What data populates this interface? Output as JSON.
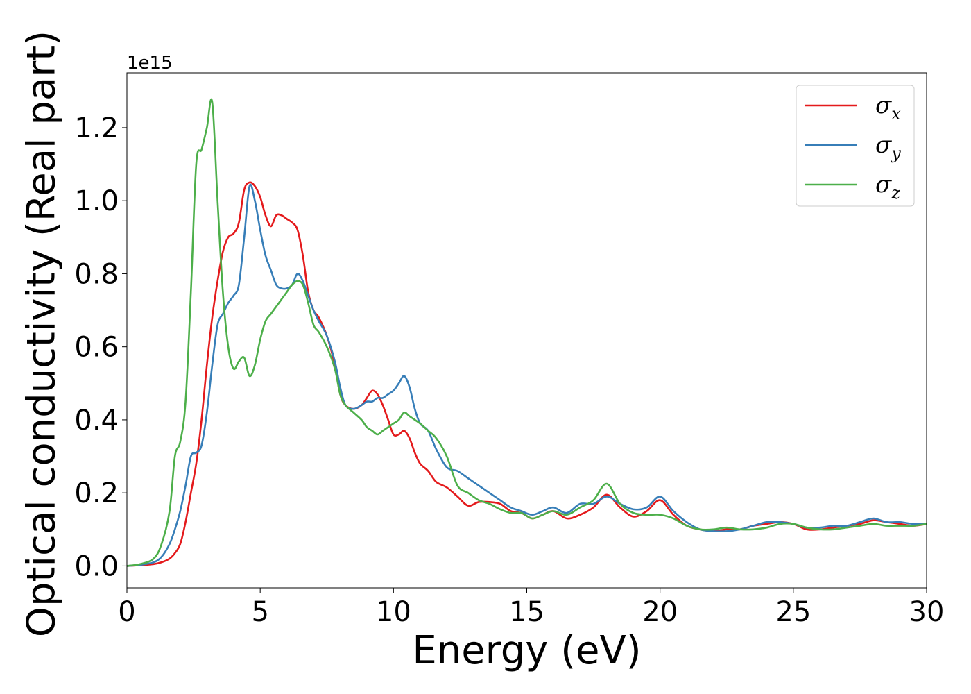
{
  "chart_data": {
    "type": "line",
    "xlabel": "Energy (eV)",
    "ylabel": "Optical conductivity (Real part)",
    "y_offset_label": "1e15",
    "xlim": [
      0,
      30
    ],
    "ylim": [
      -0.06,
      1.35
    ],
    "xticks": [
      0,
      5,
      10,
      15,
      20,
      25,
      30
    ],
    "yticks": [
      0.0,
      0.2,
      0.4,
      0.6,
      0.8,
      1.0,
      1.2
    ],
    "xtick_labels": [
      "0",
      "5",
      "10",
      "15",
      "20",
      "25",
      "30"
    ],
    "ytick_labels": [
      "0.0",
      "0.2",
      "0.4",
      "0.6",
      "0.8",
      "1.0",
      "1.2"
    ],
    "grid": false,
    "legend_position": "upper right",
    "series": [
      {
        "name": "σ",
        "subscript": "x",
        "color": "#e41a1c",
        "x": [
          0,
          0.5,
          1.0,
          1.3,
          1.6,
          1.8,
          2.0,
          2.2,
          2.4,
          2.6,
          2.8,
          3.0,
          3.2,
          3.4,
          3.6,
          3.8,
          4.0,
          4.2,
          4.4,
          4.6,
          4.8,
          5.0,
          5.2,
          5.4,
          5.6,
          5.8,
          6.0,
          6.2,
          6.4,
          6.6,
          6.8,
          7.0,
          7.2,
          7.5,
          7.8,
          8.0,
          8.2,
          8.5,
          8.8,
          9.0,
          9.2,
          9.4,
          9.6,
          9.8,
          10.0,
          10.2,
          10.4,
          10.6,
          10.8,
          11.0,
          11.3,
          11.6,
          12.0,
          12.4,
          12.8,
          13.2,
          13.6,
          14.0,
          14.4,
          14.8,
          15.2,
          15.6,
          16.0,
          16.5,
          17.0,
          17.5,
          18.0,
          18.5,
          19.0,
          19.5,
          20.0,
          20.5,
          21.0,
          21.5,
          22.0,
          22.5,
          23.0,
          23.5,
          24.0,
          24.5,
          25.0,
          25.5,
          26.0,
          26.5,
          27.0,
          27.5,
          28.0,
          28.5,
          29.0,
          29.5,
          30.0
        ],
        "values": [
          0.0,
          0.002,
          0.005,
          0.01,
          0.02,
          0.035,
          0.06,
          0.12,
          0.2,
          0.28,
          0.4,
          0.55,
          0.68,
          0.78,
          0.86,
          0.9,
          0.91,
          0.94,
          1.03,
          1.05,
          1.04,
          1.01,
          0.96,
          0.93,
          0.96,
          0.96,
          0.95,
          0.94,
          0.92,
          0.85,
          0.75,
          0.7,
          0.68,
          0.63,
          0.55,
          0.47,
          0.44,
          0.43,
          0.44,
          0.46,
          0.48,
          0.47,
          0.44,
          0.4,
          0.36,
          0.36,
          0.37,
          0.35,
          0.31,
          0.28,
          0.26,
          0.23,
          0.215,
          0.19,
          0.165,
          0.175,
          0.175,
          0.17,
          0.15,
          0.145,
          0.13,
          0.14,
          0.15,
          0.13,
          0.14,
          0.16,
          0.195,
          0.16,
          0.135,
          0.15,
          0.18,
          0.14,
          0.11,
          0.1,
          0.095,
          0.1,
          0.1,
          0.11,
          0.115,
          0.12,
          0.115,
          0.1,
          0.1,
          0.105,
          0.11,
          0.115,
          0.125,
          0.12,
          0.115,
          0.11,
          0.115
        ]
      },
      {
        "name": "σ",
        "subscript": "y",
        "color": "#377eb8",
        "x": [
          0,
          0.5,
          1.0,
          1.3,
          1.6,
          1.8,
          2.0,
          2.2,
          2.4,
          2.6,
          2.8,
          3.0,
          3.2,
          3.4,
          3.6,
          3.8,
          4.0,
          4.2,
          4.4,
          4.6,
          4.8,
          5.0,
          5.2,
          5.4,
          5.6,
          5.8,
          6.0,
          6.2,
          6.4,
          6.6,
          6.8,
          7.0,
          7.2,
          7.5,
          7.8,
          8.0,
          8.2,
          8.5,
          8.8,
          9.0,
          9.2,
          9.4,
          9.6,
          9.8,
          10.0,
          10.2,
          10.4,
          10.6,
          10.8,
          11.0,
          11.3,
          11.6,
          12.0,
          12.4,
          12.8,
          13.2,
          13.6,
          14.0,
          14.4,
          14.8,
          15.2,
          15.6,
          16.0,
          16.5,
          17.0,
          17.5,
          18.0,
          18.5,
          19.0,
          19.5,
          20.0,
          20.5,
          21.0,
          21.5,
          22.0,
          22.5,
          23.0,
          23.5,
          24.0,
          24.5,
          25.0,
          25.5,
          26.0,
          26.5,
          27.0,
          27.5,
          28.0,
          28.5,
          29.0,
          29.5,
          30.0
        ],
        "values": [
          0.0,
          0.003,
          0.01,
          0.025,
          0.06,
          0.1,
          0.15,
          0.22,
          0.3,
          0.31,
          0.33,
          0.42,
          0.55,
          0.66,
          0.69,
          0.72,
          0.74,
          0.77,
          0.9,
          1.04,
          1.0,
          0.92,
          0.85,
          0.81,
          0.77,
          0.76,
          0.76,
          0.77,
          0.8,
          0.78,
          0.74,
          0.7,
          0.67,
          0.63,
          0.56,
          0.49,
          0.44,
          0.43,
          0.44,
          0.45,
          0.45,
          0.46,
          0.46,
          0.47,
          0.48,
          0.5,
          0.52,
          0.49,
          0.43,
          0.39,
          0.37,
          0.32,
          0.27,
          0.26,
          0.24,
          0.22,
          0.2,
          0.18,
          0.16,
          0.15,
          0.14,
          0.15,
          0.16,
          0.145,
          0.17,
          0.17,
          0.19,
          0.17,
          0.155,
          0.16,
          0.19,
          0.15,
          0.12,
          0.1,
          0.095,
          0.095,
          0.1,
          0.11,
          0.12,
          0.12,
          0.115,
          0.105,
          0.105,
          0.11,
          0.11,
          0.12,
          0.13,
          0.12,
          0.12,
          0.115,
          0.115
        ]
      },
      {
        "name": "σ",
        "subscript": "z",
        "color": "#4daf4a",
        "x": [
          0,
          0.5,
          1.0,
          1.3,
          1.6,
          1.8,
          2.0,
          2.2,
          2.4,
          2.6,
          2.8,
          3.0,
          3.2,
          3.4,
          3.6,
          3.8,
          4.0,
          4.2,
          4.4,
          4.6,
          4.8,
          5.0,
          5.2,
          5.4,
          5.6,
          5.8,
          6.0,
          6.2,
          6.4,
          6.6,
          6.8,
          7.0,
          7.2,
          7.5,
          7.8,
          8.0,
          8.2,
          8.5,
          8.8,
          9.0,
          9.2,
          9.4,
          9.6,
          9.8,
          10.0,
          10.2,
          10.4,
          10.6,
          10.8,
          11.0,
          11.3,
          11.6,
          12.0,
          12.4,
          12.8,
          13.2,
          13.6,
          14.0,
          14.4,
          14.8,
          15.2,
          15.6,
          16.0,
          16.5,
          17.0,
          17.5,
          18.0,
          18.5,
          19.0,
          19.5,
          20.0,
          20.5,
          21.0,
          21.5,
          22.0,
          22.5,
          23.0,
          23.5,
          24.0,
          24.5,
          25.0,
          25.5,
          26.0,
          26.5,
          27.0,
          27.5,
          28.0,
          28.5,
          29.0,
          29.5,
          30.0
        ],
        "values": [
          0.0,
          0.005,
          0.02,
          0.06,
          0.15,
          0.3,
          0.34,
          0.45,
          0.75,
          1.1,
          1.14,
          1.2,
          1.27,
          1.0,
          0.75,
          0.6,
          0.54,
          0.56,
          0.57,
          0.52,
          0.55,
          0.62,
          0.67,
          0.69,
          0.71,
          0.73,
          0.75,
          0.77,
          0.78,
          0.77,
          0.72,
          0.66,
          0.64,
          0.6,
          0.54,
          0.47,
          0.44,
          0.42,
          0.4,
          0.38,
          0.37,
          0.36,
          0.37,
          0.38,
          0.39,
          0.4,
          0.42,
          0.41,
          0.4,
          0.39,
          0.37,
          0.35,
          0.3,
          0.22,
          0.2,
          0.18,
          0.17,
          0.155,
          0.145,
          0.145,
          0.13,
          0.14,
          0.15,
          0.14,
          0.16,
          0.18,
          0.225,
          0.17,
          0.145,
          0.14,
          0.14,
          0.13,
          0.11,
          0.1,
          0.1,
          0.105,
          0.1,
          0.1,
          0.105,
          0.115,
          0.115,
          0.105,
          0.1,
          0.1,
          0.105,
          0.11,
          0.115,
          0.11,
          0.11,
          0.11,
          0.115
        ]
      }
    ]
  }
}
